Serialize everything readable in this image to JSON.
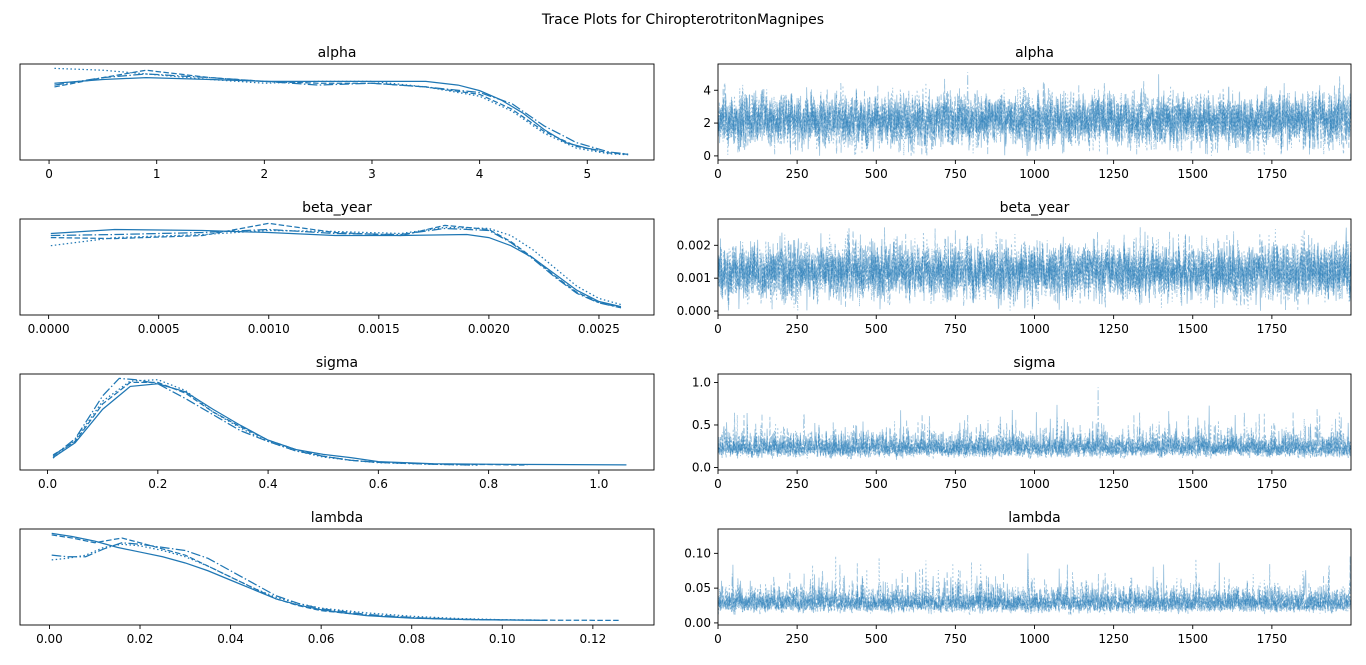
{
  "figure": {
    "title": "Trace Plots for ChiropterotritonMagnipes"
  },
  "colors": {
    "series": "#1f77b4",
    "axes": "#000000",
    "background": "#ffffff"
  },
  "chart_data": [
    {
      "type": "line",
      "kind": "density",
      "title": "alpha",
      "xlim": [
        -0.27,
        5.62
      ],
      "xticks": [
        0,
        1,
        2,
        3,
        4,
        5
      ],
      "xtick_labels": [
        "0",
        "1",
        "2",
        "3",
        "4",
        "5"
      ],
      "yticks": [],
      "series": [
        {
          "style": "solid",
          "x": [
            0.05,
            0.5,
            0.9,
            1.5,
            2.0,
            2.5,
            3.0,
            3.5,
            3.8,
            4.0,
            4.2,
            4.4,
            4.6,
            4.8,
            5.0,
            5.1
          ],
          "y": [
            0.39,
            0.41,
            0.42,
            0.41,
            0.4,
            0.4,
            0.4,
            0.4,
            0.38,
            0.35,
            0.3,
            0.23,
            0.14,
            0.07,
            0.04,
            0.03
          ]
        },
        {
          "style": "dashed",
          "x": [
            0.05,
            0.5,
            0.9,
            1.5,
            2.0,
            2.5,
            3.0,
            3.5,
            4.0,
            4.3,
            4.6,
            4.9,
            5.2,
            5.38
          ],
          "y": [
            0.37,
            0.42,
            0.46,
            0.42,
            0.4,
            0.39,
            0.39,
            0.37,
            0.33,
            0.25,
            0.13,
            0.05,
            0.015,
            0.007
          ]
        },
        {
          "style": "dashdot",
          "x": [
            0.05,
            0.5,
            0.9,
            1.5,
            2.0,
            2.5,
            3.0,
            3.5,
            4.0,
            4.3,
            4.6,
            4.9,
            5.2,
            5.38
          ],
          "y": [
            0.38,
            0.42,
            0.44,
            0.42,
            0.4,
            0.38,
            0.39,
            0.37,
            0.34,
            0.28,
            0.16,
            0.07,
            0.02,
            0.008
          ]
        },
        {
          "style": "dotted",
          "x": [
            0.05,
            0.5,
            0.9,
            1.5,
            2.0,
            2.5,
            3.0,
            3.5,
            4.0,
            4.3,
            4.6,
            4.9,
            5.2,
            5.38
          ],
          "y": [
            0.47,
            0.46,
            0.44,
            0.41,
            0.39,
            0.4,
            0.4,
            0.37,
            0.32,
            0.24,
            0.12,
            0.04,
            0.01,
            0.005
          ]
        }
      ]
    },
    {
      "type": "line",
      "kind": "trace",
      "title": "alpha",
      "xlim": [
        0,
        2000
      ],
      "ylim": [
        -0.25,
        5.6
      ],
      "xticks": [
        0,
        250,
        500,
        750,
        1000,
        1250,
        1500,
        1750
      ],
      "xtick_labels": [
        "0",
        "250",
        "500",
        "750",
        "1000",
        "1250",
        "1500",
        "1750"
      ],
      "yticks": [
        0,
        2,
        4
      ],
      "ytick_labels": [
        "0",
        "2",
        "4"
      ],
      "draws": 2000,
      "chains": 4,
      "center": 2.2,
      "spread": 1.1,
      "min": 0.0,
      "max": 5.4,
      "skew": 0
    },
    {
      "type": "line",
      "kind": "density",
      "title": "beta_year",
      "xlim": [
        -0.00013,
        0.00275
      ],
      "xticks": [
        0,
        0.0005,
        0.001,
        0.0015,
        0.002,
        0.0025
      ],
      "xtick_labels": [
        "0.0000",
        "0.0005",
        "0.0010",
        "0.0015",
        "0.0020",
        "0.0025"
      ],
      "yticks": [],
      "series": [
        {
          "style": "solid",
          "x": [
            1e-05,
            0.0003,
            0.0007,
            0.001,
            0.0013,
            0.0016,
            0.0019,
            0.002,
            0.0021,
            0.0022,
            0.0023,
            0.0024,
            0.0025,
            0.0026
          ],
          "y": [
            380,
            400,
            395,
            385,
            370,
            370,
            375,
            360,
            320,
            260,
            180,
            100,
            45,
            20
          ]
        },
        {
          "style": "dashed",
          "x": [
            1e-05,
            0.0003,
            0.0007,
            0.001,
            0.0013,
            0.0016,
            0.0018,
            0.002,
            0.0021,
            0.0022,
            0.0023,
            0.0024,
            0.0025,
            0.0026
          ],
          "y": [
            360,
            355,
            370,
            430,
            385,
            370,
            420,
            400,
            340,
            260,
            170,
            90,
            40,
            15
          ]
        },
        {
          "style": "dashdot",
          "x": [
            1e-05,
            0.0003,
            0.0007,
            0.001,
            0.0013,
            0.0016,
            0.0018,
            0.002,
            0.0021,
            0.0022,
            0.0023,
            0.0024,
            0.0025,
            0.0026
          ],
          "y": [
            370,
            375,
            385,
            400,
            380,
            375,
            405,
            395,
            335,
            255,
            165,
            85,
            38,
            14
          ]
        },
        {
          "style": "dotted",
          "x": [
            1e-05,
            0.0003,
            0.0007,
            0.001,
            0.0013,
            0.0016,
            0.0018,
            0.002,
            0.0021,
            0.0022,
            0.0023,
            0.0024,
            0.0025,
            0.0026
          ],
          "y": [
            320,
            360,
            375,
            395,
            390,
            380,
            410,
            405,
            370,
            300,
            210,
            120,
            60,
            30
          ]
        }
      ]
    },
    {
      "type": "line",
      "kind": "trace",
      "title": "beta_year",
      "xlim": [
        0,
        2000
      ],
      "ylim": [
        -0.00012,
        0.0028
      ],
      "xticks": [
        0,
        250,
        500,
        750,
        1000,
        1250,
        1500,
        1750
      ],
      "xtick_labels": [
        "0",
        "250",
        "500",
        "750",
        "1000",
        "1250",
        "1500",
        "1750"
      ],
      "yticks": [
        0,
        0.001,
        0.002
      ],
      "ytick_labels": [
        "0.000",
        "0.001",
        "0.002"
      ],
      "draws": 2000,
      "chains": 4,
      "center": 0.0012,
      "spread": 0.00058,
      "min": 0.0,
      "max": 0.0026,
      "skew": 0
    },
    {
      "type": "line",
      "kind": "density",
      "title": "sigma",
      "xlim": [
        -0.05,
        1.1
      ],
      "xticks": [
        0,
        0.2,
        0.4,
        0.6,
        0.8,
        1.0
      ],
      "xtick_labels": [
        "0.0",
        "0.2",
        "0.4",
        "0.6",
        "0.8",
        "1.0"
      ],
      "yticks": [],
      "series": [
        {
          "style": "solid",
          "x": [
            0.01,
            0.05,
            0.1,
            0.15,
            0.2,
            0.25,
            0.3,
            0.35,
            0.4,
            0.45,
            0.5,
            0.55,
            0.6,
            0.7,
            0.8,
            0.9,
            1.05
          ],
          "y": [
            0.3,
            0.85,
            2.1,
            2.95,
            3.05,
            2.75,
            2.1,
            1.5,
            0.95,
            0.6,
            0.42,
            0.3,
            0.15,
            0.07,
            0.05,
            0.04,
            0.03
          ]
        },
        {
          "style": "dashed",
          "x": [
            0.01,
            0.05,
            0.1,
            0.15,
            0.2,
            0.25,
            0.3,
            0.35,
            0.4,
            0.45,
            0.5,
            0.55,
            0.6,
            0.7,
            0.8,
            0.87
          ],
          "y": [
            0.4,
            0.9,
            2.3,
            3.1,
            3.1,
            2.7,
            2.0,
            1.45,
            0.95,
            0.6,
            0.35,
            0.2,
            0.12,
            0.06,
            0.04,
            0.02
          ]
        },
        {
          "style": "dashdot",
          "x": [
            0.01,
            0.05,
            0.1,
            0.13,
            0.16,
            0.2,
            0.25,
            0.3,
            0.35,
            0.4,
            0.45,
            0.5,
            0.55,
            0.6,
            0.7,
            0.78
          ],
          "y": [
            0.35,
            1.0,
            2.6,
            3.25,
            3.2,
            3.05,
            2.5,
            1.9,
            1.3,
            0.9,
            0.55,
            0.35,
            0.2,
            0.12,
            0.05,
            0.02
          ]
        },
        {
          "style": "dotted",
          "x": [
            0.01,
            0.05,
            0.1,
            0.15,
            0.2,
            0.25,
            0.3,
            0.35,
            0.4,
            0.45,
            0.5,
            0.55,
            0.6,
            0.7,
            0.77
          ],
          "y": [
            0.28,
            0.95,
            2.4,
            3.15,
            3.2,
            2.8,
            2.0,
            1.4,
            0.9,
            0.55,
            0.32,
            0.2,
            0.11,
            0.05,
            0.02
          ]
        }
      ]
    },
    {
      "type": "line",
      "kind": "trace",
      "title": "sigma",
      "xlim": [
        0,
        2000
      ],
      "ylim": [
        -0.03,
        1.1
      ],
      "xticks": [
        0,
        250,
        500,
        750,
        1000,
        1250,
        1500,
        1750
      ],
      "xtick_labels": [
        "0",
        "250",
        "500",
        "750",
        "1000",
        "1250",
        "1500",
        "1750"
      ],
      "yticks": [
        0,
        0.5,
        1.0
      ],
      "ytick_labels": [
        "0.0",
        "0.5",
        "1.0"
      ],
      "draws": 2000,
      "chains": 4,
      "center": 0.24,
      "spread": 0.1,
      "min": 0.0,
      "max": 1.05,
      "skew": 1
    },
    {
      "type": "line",
      "kind": "density",
      "title": "lambda",
      "xlim": [
        -0.0065,
        0.1335
      ],
      "xticks": [
        0,
        0.02,
        0.04,
        0.06,
        0.08,
        0.1,
        0.12
      ],
      "xtick_labels": [
        "0.00",
        "0.02",
        "0.04",
        "0.06",
        "0.08",
        "0.10",
        "0.12"
      ],
      "yticks": [],
      "series": [
        {
          "style": "solid",
          "x": [
            0.0005,
            0.005,
            0.01,
            0.015,
            0.02,
            0.025,
            0.03,
            0.035,
            0.04,
            0.045,
            0.05,
            0.055,
            0.06,
            0.065,
            0.07,
            0.08,
            0.09,
            0.1,
            0.11
          ],
          "y": [
            28,
            27,
            25.5,
            23.5,
            22,
            20.5,
            18.5,
            16,
            13,
            10,
            7,
            5,
            3.5,
            2.5,
            1.6,
            0.8,
            0.4,
            0.2,
            0.1
          ]
        },
        {
          "style": "dashed",
          "x": [
            0.0005,
            0.005,
            0.01,
            0.016,
            0.02,
            0.025,
            0.03,
            0.035,
            0.04,
            0.045,
            0.05,
            0.055,
            0.06,
            0.07,
            0.08,
            0.09,
            0.1,
            0.11,
            0.126
          ],
          "y": [
            27.5,
            26.5,
            25,
            26.5,
            25,
            23,
            21,
            17.5,
            14,
            10.5,
            7,
            4.8,
            3.2,
            1.7,
            0.9,
            0.4,
            0.25,
            0.15,
            0.08
          ]
        },
        {
          "style": "dashdot",
          "x": [
            0.0005,
            0.004,
            0.008,
            0.012,
            0.016,
            0.02,
            0.025,
            0.03,
            0.035,
            0.04,
            0.045,
            0.05,
            0.055,
            0.06,
            0.07,
            0.08,
            0.09,
            0.1
          ],
          "y": [
            21,
            20.5,
            20.5,
            23,
            25,
            24.5,
            23.5,
            22.5,
            20,
            16,
            12,
            8,
            5.5,
            3.8,
            2.0,
            1.0,
            0.45,
            0.2
          ]
        },
        {
          "style": "dotted",
          "x": [
            0.0005,
            0.004,
            0.008,
            0.012,
            0.016,
            0.02,
            0.025,
            0.03,
            0.035,
            0.04,
            0.045,
            0.05,
            0.055,
            0.06,
            0.07,
            0.08,
            0.09,
            0.1,
            0.11
          ],
          "y": [
            19.5,
            20,
            21,
            23.5,
            24.5,
            24,
            22.5,
            20.5,
            17.5,
            14,
            10.5,
            7.5,
            5.5,
            4,
            2.5,
            1.4,
            0.7,
            0.3,
            0.15
          ]
        }
      ]
    },
    {
      "type": "line",
      "kind": "trace",
      "title": "lambda",
      "xlim": [
        0,
        2000
      ],
      "ylim": [
        -0.003,
        0.135
      ],
      "xticks": [
        0,
        250,
        500,
        750,
        1000,
        1250,
        1500,
        1750
      ],
      "xtick_labels": [
        "0",
        "250",
        "500",
        "750",
        "1000",
        "1250",
        "1500",
        "1750"
      ],
      "yticks": [
        0,
        0.05,
        0.1
      ],
      "ytick_labels": [
        "0.00",
        "0.05",
        "0.10"
      ],
      "draws": 2000,
      "chains": 4,
      "center": 0.03,
      "spread": 0.014,
      "min": 0.0,
      "max": 0.128,
      "skew": 1
    }
  ]
}
